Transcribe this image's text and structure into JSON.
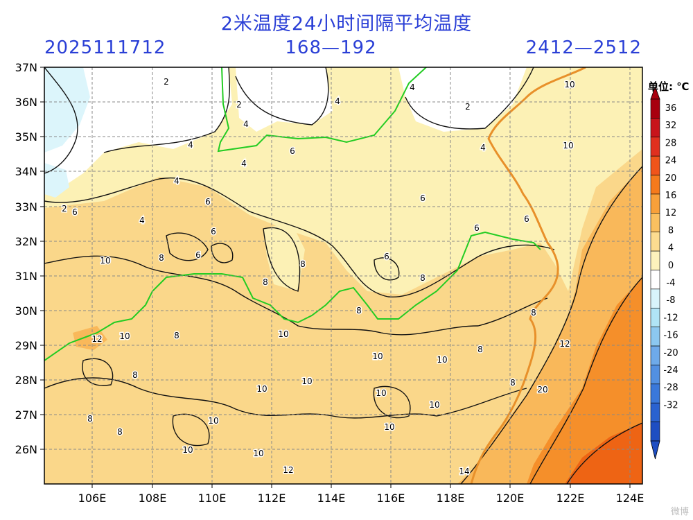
{
  "header": {
    "title": "2米温度24小时间隔平均温度",
    "init_time": "2025111712",
    "forecast_hours": "168—192",
    "valid_range": "2412—2512"
  },
  "map": {
    "lat_labels": [
      "37N",
      "36N",
      "35N",
      "34N",
      "33N",
      "32N",
      "31N",
      "30N",
      "29N",
      "28N",
      "27N",
      "26N"
    ],
    "lon_labels": [
      "106E",
      "108E",
      "110E",
      "112E",
      "114E",
      "116E",
      "118E",
      "120E",
      "122E",
      "124E"
    ],
    "colors": {
      "band_4_8": "#fcf1b5",
      "band_8_12": "#fad78a",
      "band_12_16": "#f9b85a",
      "band_16_20": "#f58f2a",
      "band_20_24": "#ee6414",
      "band_0_4": "#ffffff",
      "band_neg4_0": "#dcf5fb",
      "province_boundary": "#22cc22",
      "coast": "#e8902a"
    },
    "contour_labels": [
      {
        "t": "2"
      },
      {
        "t": "2"
      },
      {
        "t": "2"
      },
      {
        "t": "2"
      },
      {
        "t": "4"
      },
      {
        "t": "4"
      },
      {
        "t": "4"
      },
      {
        "t": "4"
      },
      {
        "t": "4"
      },
      {
        "t": "4"
      },
      {
        "t": "4"
      },
      {
        "t": "4"
      },
      {
        "t": "6"
      },
      {
        "t": "6"
      },
      {
        "t": "6"
      },
      {
        "t": "6"
      },
      {
        "t": "6"
      },
      {
        "t": "6"
      },
      {
        "t": "6"
      },
      {
        "t": "6"
      },
      {
        "t": "6"
      },
      {
        "t": "8"
      },
      {
        "t": "8"
      },
      {
        "t": "8"
      },
      {
        "t": "8"
      },
      {
        "t": "8"
      },
      {
        "t": "8"
      },
      {
        "t": "8"
      },
      {
        "t": "8"
      },
      {
        "t": "8"
      },
      {
        "t": "8"
      },
      {
        "t": "8"
      },
      {
        "t": "8"
      },
      {
        "t": "10"
      },
      {
        "t": "10"
      },
      {
        "t": "10"
      },
      {
        "t": "10"
      },
      {
        "t": "10"
      },
      {
        "t": "10"
      },
      {
        "t": "10"
      },
      {
        "t": "10"
      },
      {
        "t": "10"
      },
      {
        "t": "10"
      },
      {
        "t": "10"
      },
      {
        "t": "10"
      },
      {
        "t": "10"
      },
      {
        "t": "10"
      },
      {
        "t": "10"
      },
      {
        "t": "12"
      },
      {
        "t": "12"
      },
      {
        "t": "12"
      },
      {
        "t": "14"
      },
      {
        "t": "20"
      }
    ]
  },
  "colorbar": {
    "unit_label": "单位: ℃",
    "labels": [
      "36",
      "32",
      "28",
      "24",
      "20",
      "16",
      "12",
      "8",
      "4",
      "0",
      "-4",
      "-8",
      "-12",
      "-16",
      "-20",
      "-24",
      "-28",
      "-32"
    ],
    "colors": [
      "#a8000e",
      "#c8141b",
      "#e0301f",
      "#f0541a",
      "#f57a1c",
      "#f8a03a",
      "#fac060",
      "#fcdc90",
      "#fdf2bc",
      "#ffffff",
      "#d8f4fb",
      "#b0e4f6",
      "#8cc8f0",
      "#6eaaea",
      "#5290e2",
      "#3a78da",
      "#2a62d0",
      "#1e4ec2"
    ]
  },
  "watermark": "微博"
}
